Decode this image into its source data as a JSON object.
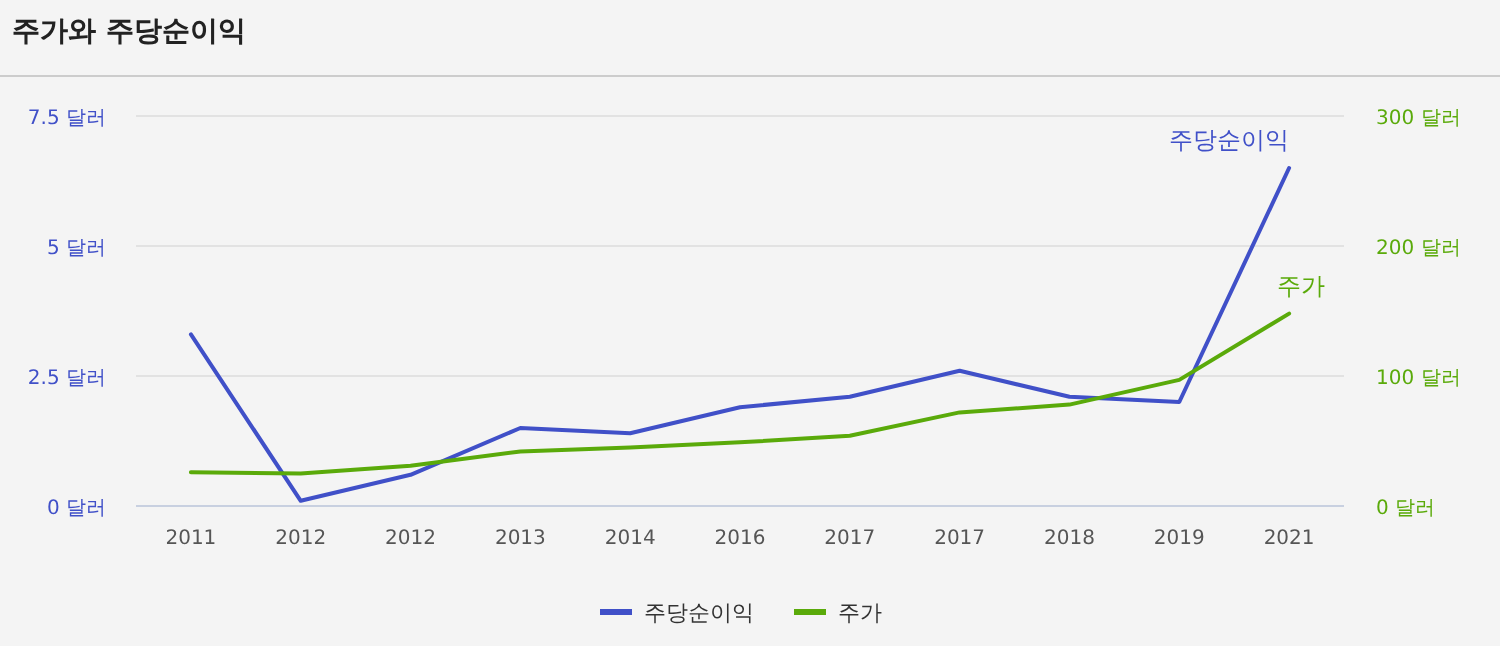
{
  "chart_data": {
    "type": "line",
    "title": "주가와 주당순이익",
    "categories": [
      "2011",
      "2012",
      "2012",
      "2013",
      "2014",
      "2016",
      "2017",
      "2017",
      "2018",
      "2019",
      "2021"
    ],
    "series": [
      {
        "name": "주당순이익",
        "color": "#4050c8",
        "values": [
          3.3,
          0.1,
          0.6,
          1.5,
          1.4,
          1.9,
          2.1,
          2.6,
          2.1,
          2.0,
          6.5
        ]
      },
      {
        "name": "주가",
        "color": "#5aaa0a",
        "axis": "y2",
        "values": [
          26,
          25,
          31,
          42,
          45,
          49,
          54,
          72,
          78,
          97,
          148
        ]
      }
    ],
    "ylim": [
      0,
      7.5
    ],
    "yticks": [
      {
        "value": 0,
        "label": "0 달러"
      },
      {
        "value": 2.5,
        "label": "2.5 달러"
      },
      {
        "value": 5,
        "label": "5 달러"
      },
      {
        "value": 7.5,
        "label": "7.5 달러"
      }
    ],
    "y2lim": [
      0,
      300
    ],
    "y2ticks": [
      {
        "value": 0,
        "label": "0 달러"
      },
      {
        "value": 100,
        "label": "100 달러"
      },
      {
        "value": 200,
        "label": "200 달러"
      },
      {
        "value": 300,
        "label": "300 달러"
      }
    ],
    "grid": "y",
    "legend": "bottom",
    "marker": "none",
    "line_style": "solid"
  }
}
